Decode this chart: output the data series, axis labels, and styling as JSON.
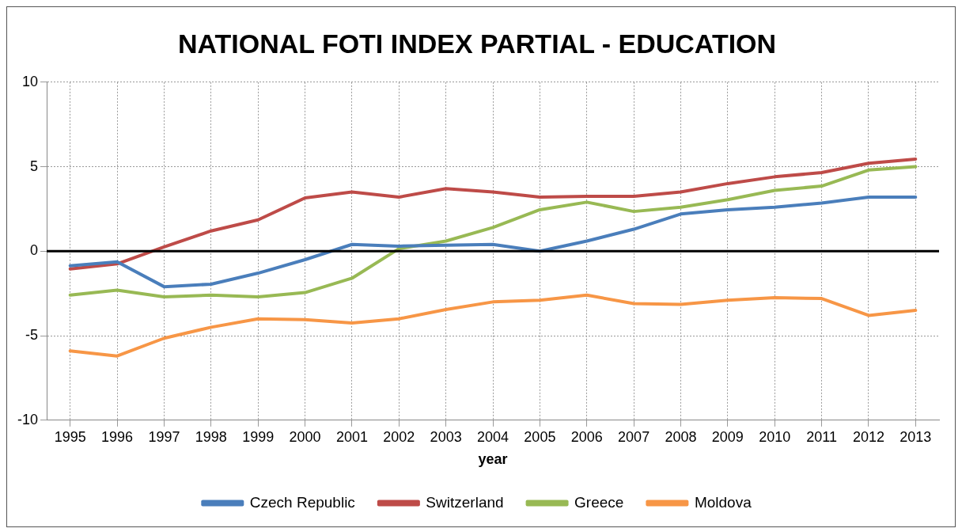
{
  "chart_data": {
    "type": "line",
    "title": "NATIONAL FOTI INDEX PARTIAL - EDUCATION",
    "xlabel": "year",
    "categories": [
      "1995",
      "1996",
      "1997",
      "1998",
      "1999",
      "2000",
      "2001",
      "2002",
      "2003",
      "2004",
      "2005",
      "2006",
      "2007",
      "2008",
      "2009",
      "2010",
      "2011",
      "2012",
      "2013"
    ],
    "series": [
      {
        "name": "Czech Republic",
        "color": "#4a7ebb",
        "values": [
          -0.86,
          -0.63,
          -2.1,
          -1.95,
          -1.3,
          -0.5,
          0.4,
          0.3,
          0.35,
          0.4,
          0,
          0.6,
          1.3,
          2.2,
          2.45,
          2.6,
          2.85,
          3.2,
          3.2
        ]
      },
      {
        "name": "Switzerland",
        "color": "#be4b48",
        "values": [
          -1.05,
          -0.75,
          0.25,
          1.2,
          1.85,
          3.15,
          3.5,
          3.2,
          3.7,
          3.5,
          3.2,
          3.25,
          3.25,
          3.5,
          4.0,
          4.4,
          4.65,
          5.2,
          5.45
        ]
      },
      {
        "name": "Greece",
        "color": "#98b954",
        "values": [
          -2.6,
          -2.3,
          -2.7,
          -2.6,
          -2.7,
          -2.45,
          -1.6,
          0.15,
          0.6,
          1.4,
          2.45,
          2.9,
          2.35,
          2.6,
          3.05,
          3.6,
          3.85,
          4.8,
          5.0
        ]
      },
      {
        "name": "Moldova",
        "color": "#f79646",
        "values": [
          -5.9,
          -6.2,
          -5.15,
          -4.5,
          -4.0,
          -4.05,
          -4.25,
          -4.0,
          -3.45,
          -3.0,
          -2.9,
          -2.6,
          -3.1,
          -3.15,
          -2.9,
          -2.75,
          -2.8,
          -3.8,
          -3.5
        ]
      }
    ],
    "ylim": [
      -10,
      10
    ],
    "yticks": [
      -10,
      -5,
      0,
      5,
      10
    ],
    "ref_lines": [
      {
        "axis": "y",
        "value": 0,
        "color": "#000000"
      }
    ],
    "grid": true,
    "legend": "bottom",
    "marker": "none",
    "line_style": "solid"
  }
}
